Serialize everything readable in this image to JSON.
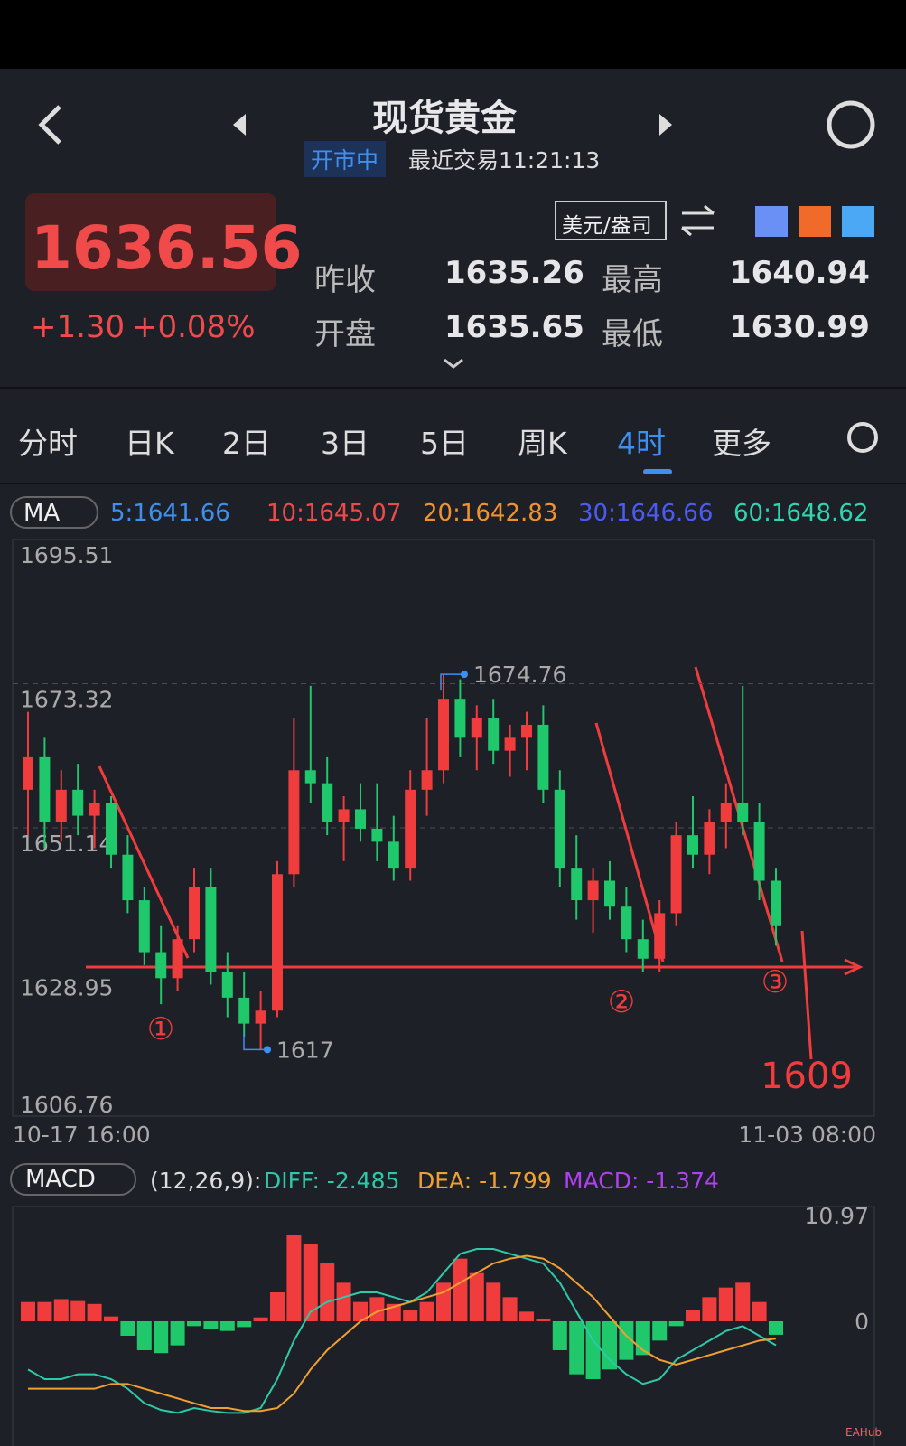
{
  "header": {
    "title": "现货黄金",
    "status": "开市中",
    "last_trade": "最近交易11:21:13"
  },
  "quote": {
    "price": "1636.56",
    "change": "+1.30",
    "change_pct": "+0.08%",
    "unit": "美元/盎司",
    "fields": [
      {
        "label": "昨收",
        "value": "1635.26"
      },
      {
        "label": "最高",
        "value": "1640.94"
      },
      {
        "label": "开盘",
        "value": "1635.65"
      },
      {
        "label": "最低",
        "value": "1630.99"
      }
    ]
  },
  "tabs": [
    "分时",
    "日K",
    "2日",
    "3日",
    "5日",
    "周K",
    "4时",
    "更多"
  ],
  "chart_data": [
    {
      "type": "candlestick",
      "indicator": "MA",
      "ma_labels": [
        {
          "text": "5:1641.66",
          "color": "#3d8ff0"
        },
        {
          "text": "10:1645.07",
          "color": "#ef4a4a"
        },
        {
          "text": "20:1642.83",
          "color": "#f0922e"
        },
        {
          "text": "30:1646.66",
          "color": "#4a5cf5"
        },
        {
          "text": "60:1648.62",
          "color": "#2ed6b2"
        }
      ],
      "ylim": [
        1606.76,
        1695.51
      ],
      "yticks": [
        1695.51,
        1673.32,
        1651.14,
        1628.95,
        1606.76
      ],
      "grid": true,
      "x_labels": [
        "10-17 16:00",
        "11-03 08:00"
      ],
      "up_color": "#f03c3c",
      "down_color": "#1fc86a",
      "ohlc": [
        [
          1657,
          1669,
          1650,
          1662
        ],
        [
          1662,
          1665,
          1648,
          1652
        ],
        [
          1652,
          1660,
          1649,
          1657
        ],
        [
          1657,
          1661,
          1650,
          1653
        ],
        [
          1653,
          1657,
          1648,
          1655
        ],
        [
          1655,
          1656,
          1645,
          1647
        ],
        [
          1647,
          1650,
          1638,
          1640
        ],
        [
          1640,
          1642,
          1630,
          1632
        ],
        [
          1632,
          1636,
          1624,
          1628
        ],
        [
          1628,
          1636,
          1626,
          1634
        ],
        [
          1634,
          1645,
          1632,
          1642
        ],
        [
          1642,
          1645,
          1627,
          1629
        ],
        [
          1629,
          1632,
          1622,
          1625
        ],
        [
          1625,
          1629,
          1619,
          1621
        ],
        [
          1621,
          1626,
          1617,
          1623
        ],
        [
          1623,
          1646,
          1622,
          1644
        ],
        [
          1644,
          1668,
          1642,
          1660
        ],
        [
          1660,
          1673,
          1655,
          1658
        ],
        [
          1658,
          1662,
          1650,
          1652
        ],
        [
          1652,
          1656,
          1646,
          1654
        ],
        [
          1654,
          1658,
          1649,
          1651
        ],
        [
          1651,
          1658,
          1646,
          1649
        ],
        [
          1649,
          1653,
          1643,
          1645
        ],
        [
          1645,
          1660,
          1643,
          1657
        ],
        [
          1657,
          1668,
          1653,
          1660
        ],
        [
          1660,
          1674.76,
          1658,
          1671
        ],
        [
          1671,
          1674,
          1662,
          1665
        ],
        [
          1665,
          1670,
          1660,
          1668
        ],
        [
          1668,
          1671,
          1661,
          1663
        ],
        [
          1663,
          1667,
          1659,
          1665
        ],
        [
          1665,
          1669,
          1660,
          1667
        ],
        [
          1667,
          1670,
          1655,
          1657
        ],
        [
          1657,
          1660,
          1642,
          1645
        ],
        [
          1645,
          1650,
          1637,
          1640
        ],
        [
          1640,
          1645,
          1635,
          1643
        ],
        [
          1643,
          1646,
          1637,
          1639
        ],
        [
          1639,
          1642,
          1632,
          1634
        ],
        [
          1634,
          1637,
          1629,
          1631
        ],
        [
          1631,
          1640,
          1629,
          1638
        ],
        [
          1638,
          1652,
          1636,
          1650
        ],
        [
          1650,
          1656,
          1645,
          1647
        ],
        [
          1647,
          1654,
          1644,
          1652
        ],
        [
          1652,
          1658,
          1648,
          1655
        ],
        [
          1655,
          1673,
          1650,
          1652
        ],
        [
          1652,
          1655,
          1640,
          1643
        ],
        [
          1643,
          1645,
          1633,
          1636
        ]
      ],
      "high_mark": 1674.76,
      "low_mark": 1617,
      "annotations": [
        "①",
        "②",
        "③",
        "1609"
      ]
    },
    {
      "type": "macd",
      "indicator": "MACD",
      "params": "(12,26,9):",
      "diff_label": "DIFF: -2.485",
      "dea_label": "DEA: -1.799",
      "macd_label": "MACD: -1.374",
      "ylim": [
        -9.7,
        10.97
      ],
      "yticks": [
        10.97,
        0
      ],
      "hist": [
        2,
        2,
        2.3,
        2.1,
        1.8,
        0.5,
        -1.5,
        -3,
        -3.3,
        -2.5,
        -0.5,
        -0.8,
        -1,
        -0.6,
        0.4,
        3,
        9,
        8,
        6,
        4,
        2,
        2.5,
        1.8,
        1.2,
        2,
        4,
        6.5,
        5,
        4,
        2.5,
        1,
        0.2,
        -3,
        -5.5,
        -6,
        -5,
        -4,
        -3.5,
        -2,
        -0.5,
        1.2,
        2.5,
        3.5,
        4,
        2,
        -1.4
      ],
      "diff": [
        -5,
        -6,
        -6,
        -5.5,
        -5.5,
        -6,
        -7,
        -8.5,
        -9.2,
        -9.5,
        -9,
        -9.3,
        -9.5,
        -9.5,
        -9,
        -6,
        -2,
        1,
        2,
        2.5,
        3,
        3,
        2.5,
        2,
        3,
        5,
        7,
        7.5,
        7.5,
        7,
        6.5,
        6,
        4,
        1,
        -2,
        -4,
        -5.5,
        -6.5,
        -6,
        -4,
        -3,
        -2,
        -1,
        -0.5,
        -1.5,
        -2.485
      ],
      "dea": [
        -7,
        -7,
        -7,
        -7,
        -7,
        -6.5,
        -6.5,
        -7,
        -7.5,
        -8,
        -8.5,
        -9,
        -9,
        -9.3,
        -9.3,
        -9,
        -7.5,
        -5,
        -3,
        -1.5,
        0,
        1,
        1.5,
        2,
        2.5,
        3,
        4,
        5,
        6,
        6.5,
        6.8,
        6.5,
        5.5,
        4,
        2.5,
        0.5,
        -1.5,
        -3,
        -4,
        -4.5,
        -4,
        -3.5,
        -3,
        -2.5,
        -2,
        -1.799
      ],
      "diff_color": "#2ec9a8",
      "dea_color": "#f0a030",
      "up_color": "#f03c3c",
      "down_color": "#1fc86a"
    }
  ],
  "watermark": "EAHub"
}
